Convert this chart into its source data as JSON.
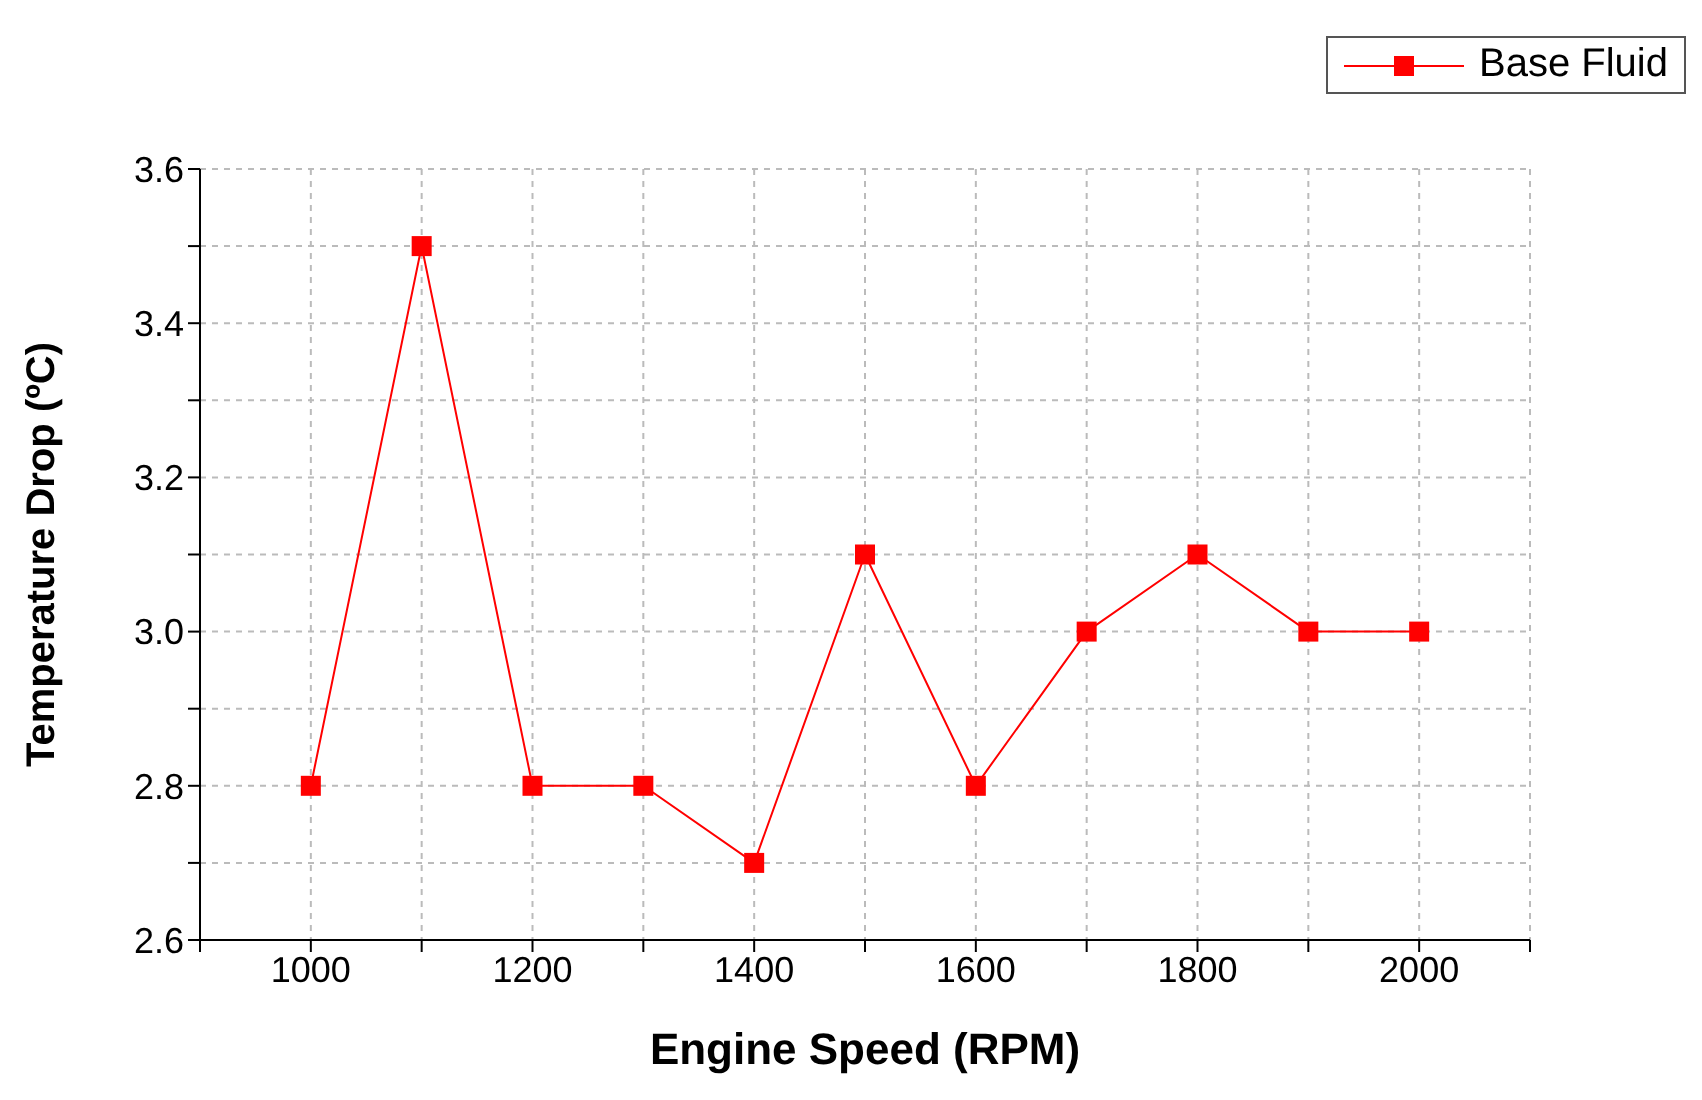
{
  "chart_data": {
    "type": "line",
    "xlabel": "Engine Speed (RPM)",
    "ylabel": "Temperature Drop (ºC)",
    "x": [
      1000,
      1100,
      1200,
      1300,
      1400,
      1500,
      1600,
      1700,
      1800,
      1900,
      2000
    ],
    "series": [
      {
        "name": "Base Fluid",
        "color": "#ff0000",
        "values": [
          2.8,
          3.5,
          2.8,
          2.8,
          2.7,
          3.1,
          2.8,
          3.0,
          3.1,
          3.0,
          3.0
        ]
      }
    ],
    "xlim": [
      900,
      2100
    ],
    "xticks": [
      {
        "value": 900,
        "label": null
      },
      1000,
      {
        "value": 1100,
        "label": null
      },
      1200,
      {
        "value": 1300,
        "label": null
      },
      1400,
      {
        "value": 1500,
        "label": null
      },
      1600,
      {
        "value": 1700,
        "label": null
      },
      1800,
      {
        "value": 1900,
        "label": null
      },
      2000,
      {
        "value": 2100,
        "label": null
      }
    ],
    "ylim": [
      2.6,
      3.6
    ],
    "yticks": [
      {
        "value": 2.6,
        "label": "2.6"
      },
      {
        "value": 2.7,
        "label": null
      },
      {
        "value": 2.8,
        "label": "2.8"
      },
      {
        "value": 2.9,
        "label": null
      },
      {
        "value": 3.0,
        "label": "3.0"
      },
      {
        "value": 3.1,
        "label": null
      },
      {
        "value": 3.2,
        "label": "3.2"
      },
      {
        "value": 3.3,
        "label": null
      },
      {
        "value": 3.4,
        "label": "3.4"
      },
      {
        "value": 3.5,
        "label": null
      },
      {
        "value": 3.6,
        "label": "3.6"
      }
    ],
    "grid": true,
    "legend": "top right",
    "marker": "square",
    "line_style": "solid"
  }
}
